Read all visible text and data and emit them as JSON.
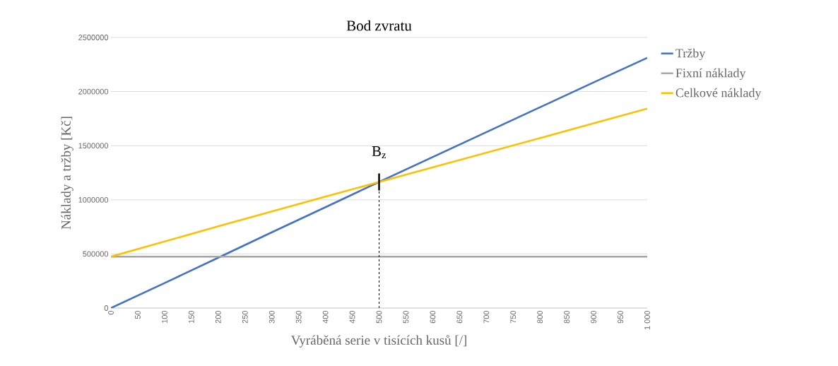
{
  "chart_data": {
    "type": "line",
    "title": "Bod zvratu",
    "xlabel": "Vyráběná serie v tisících kusů [/]",
    "ylabel": "Náklady a tržby [Kč]",
    "x": [
      0,
      100,
      200,
      300,
      400,
      500,
      600,
      700,
      800,
      900,
      1000
    ],
    "series": [
      {
        "name": "Tržby",
        "color": "#4472c4",
        "values": [
          0,
          231000,
          465000,
          700000,
          932000,
          1165000,
          1395000,
          1625000,
          1855000,
          2085000,
          2311000
        ]
      },
      {
        "name": "Fixní náklady",
        "color": "#a5a5a5",
        "values": [
          475000,
          475000,
          475000,
          475000,
          475000,
          475000,
          475000,
          475000,
          475000,
          475000,
          475000
        ]
      },
      {
        "name": "Celkové náklady",
        "color": "#ffc000",
        "values": [
          475000,
          615000,
          755000,
          893000,
          1030000,
          1165000,
          1300000,
          1435000,
          1570000,
          1707000,
          1843000
        ]
      }
    ],
    "xlim": [
      0,
      1000
    ],
    "xticks": [
      0,
      50,
      100,
      150,
      200,
      250,
      300,
      350,
      400,
      450,
      500,
      550,
      600,
      650,
      700,
      750,
      800,
      850,
      900,
      950,
      {
        "value": 1000,
        "label": "1 000"
      }
    ],
    "ylim": [
      0,
      2500000
    ],
    "yticks": [
      0,
      500000,
      1000000,
      1500000,
      2000000,
      2500000
    ],
    "ref_lines": [
      {
        "axis": "x",
        "value": 500,
        "label": "B$_{z}$",
        "color": "#000000",
        "line_style": "dashed"
      }
    ],
    "grid": "y",
    "legend": "right",
    "marker": "none",
    "line_style": "solid"
  }
}
